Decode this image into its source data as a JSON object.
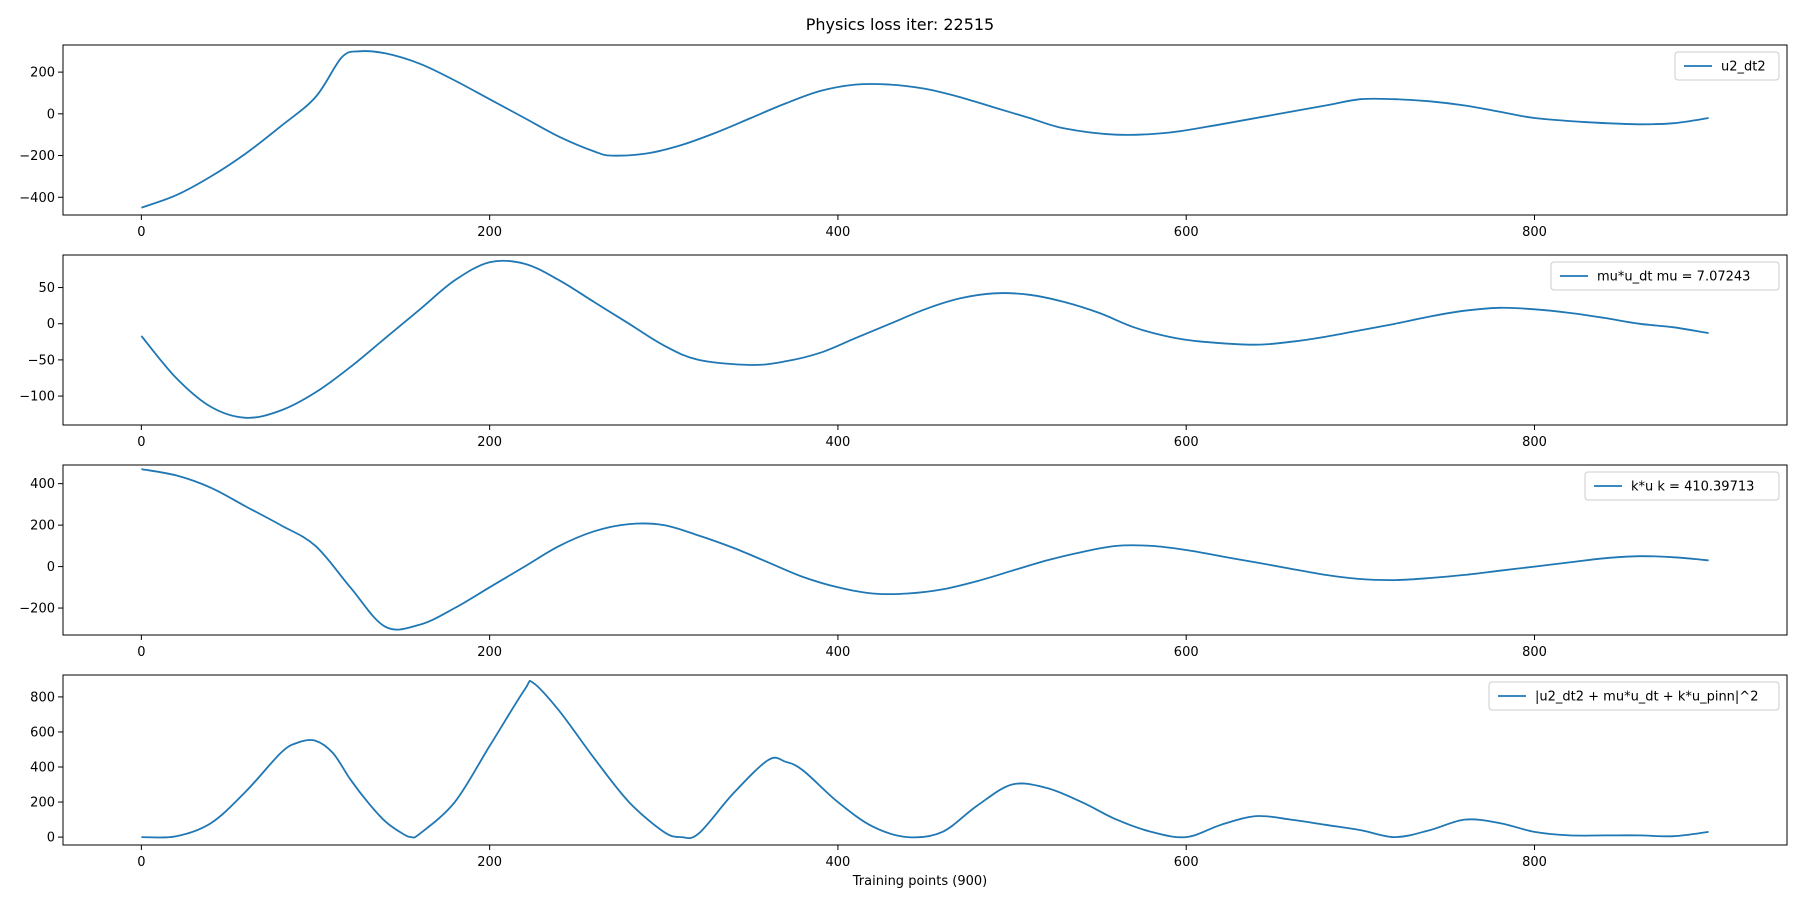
{
  "figure": {
    "title": "Physics loss iter: 22515",
    "xlabel": "Training points (900)"
  },
  "colors": {
    "line": "#1f77b4",
    "axis": "#000000",
    "legend_border": "#cccccc"
  },
  "chart_data": [
    {
      "type": "line",
      "legend_label": "u2_dt2",
      "xlim": [
        -45,
        945
      ],
      "ylim": [
        -485,
        330
      ],
      "xticks": [
        0,
        200,
        400,
        600,
        800
      ],
      "yticks": [
        -400,
        -200,
        0,
        200
      ],
      "legend": "top-right",
      "points": [
        [
          0,
          -450
        ],
        [
          20,
          -390
        ],
        [
          40,
          -300
        ],
        [
          60,
          -190
        ],
        [
          80,
          -60
        ],
        [
          100,
          80
        ],
        [
          115,
          270
        ],
        [
          125,
          300
        ],
        [
          140,
          290
        ],
        [
          160,
          240
        ],
        [
          180,
          160
        ],
        [
          200,
          70
        ],
        [
          220,
          -20
        ],
        [
          240,
          -110
        ],
        [
          260,
          -180
        ],
        [
          270,
          -200
        ],
        [
          290,
          -190
        ],
        [
          310,
          -150
        ],
        [
          330,
          -90
        ],
        [
          350,
          -20
        ],
        [
          370,
          50
        ],
        [
          390,
          110
        ],
        [
          410,
          140
        ],
        [
          430,
          140
        ],
        [
          450,
          120
        ],
        [
          470,
          80
        ],
        [
          490,
          30
        ],
        [
          510,
          -20
        ],
        [
          530,
          -70
        ],
        [
          560,
          -100
        ],
        [
          590,
          -90
        ],
        [
          620,
          -50
        ],
        [
          650,
          -5
        ],
        [
          680,
          40
        ],
        [
          700,
          70
        ],
        [
          720,
          70
        ],
        [
          740,
          60
        ],
        [
          760,
          40
        ],
        [
          780,
          10
        ],
        [
          800,
          -20
        ],
        [
          830,
          -40
        ],
        [
          860,
          -50
        ],
        [
          880,
          -45
        ],
        [
          900,
          -20
        ]
      ]
    },
    {
      "type": "line",
      "legend_label": "mu*u_dt  mu = 7.07243",
      "xlim": [
        -45,
        945
      ],
      "ylim": [
        -140,
        95
      ],
      "xticks": [
        0,
        200,
        400,
        600,
        800
      ],
      "yticks": [
        -100,
        -50,
        0,
        50
      ],
      "legend": "top-right",
      "points": [
        [
          0,
          -17
        ],
        [
          20,
          -75
        ],
        [
          40,
          -115
        ],
        [
          60,
          -130
        ],
        [
          80,
          -120
        ],
        [
          100,
          -95
        ],
        [
          120,
          -60
        ],
        [
          140,
          -20
        ],
        [
          160,
          20
        ],
        [
          180,
          60
        ],
        [
          200,
          85
        ],
        [
          220,
          83
        ],
        [
          240,
          60
        ],
        [
          260,
          30
        ],
        [
          280,
          0
        ],
        [
          300,
          -30
        ],
        [
          320,
          -50
        ],
        [
          350,
          -57
        ],
        [
          370,
          -52
        ],
        [
          390,
          -40
        ],
        [
          410,
          -20
        ],
        [
          430,
          0
        ],
        [
          450,
          20
        ],
        [
          470,
          35
        ],
        [
          490,
          42
        ],
        [
          510,
          40
        ],
        [
          530,
          30
        ],
        [
          550,
          15
        ],
        [
          570,
          -5
        ],
        [
          590,
          -18
        ],
        [
          610,
          -25
        ],
        [
          640,
          -29
        ],
        [
          660,
          -25
        ],
        [
          680,
          -18
        ],
        [
          700,
          -9
        ],
        [
          720,
          0
        ],
        [
          740,
          10
        ],
        [
          760,
          18
        ],
        [
          780,
          22
        ],
        [
          800,
          20
        ],
        [
          820,
          15
        ],
        [
          840,
          8
        ],
        [
          860,
          0
        ],
        [
          880,
          -5
        ],
        [
          900,
          -13
        ]
      ]
    },
    {
      "type": "line",
      "legend_label": "k*u  k = 410.39713",
      "xlim": [
        -45,
        945
      ],
      "ylim": [
        -330,
        490
      ],
      "xticks": [
        0,
        200,
        400,
        600,
        800
      ],
      "yticks": [
        -200,
        0,
        200,
        400
      ],
      "legend": "top-right",
      "points": [
        [
          0,
          470
        ],
        [
          20,
          440
        ],
        [
          40,
          380
        ],
        [
          60,
          290
        ],
        [
          80,
          200
        ],
        [
          100,
          100
        ],
        [
          120,
          -100
        ],
        [
          140,
          -290
        ],
        [
          160,
          -280
        ],
        [
          180,
          -200
        ],
        [
          200,
          -100
        ],
        [
          220,
          0
        ],
        [
          240,
          100
        ],
        [
          260,
          170
        ],
        [
          280,
          205
        ],
        [
          300,
          200
        ],
        [
          320,
          150
        ],
        [
          340,
          90
        ],
        [
          360,
          20
        ],
        [
          380,
          -50
        ],
        [
          400,
          -100
        ],
        [
          420,
          -130
        ],
        [
          440,
          -130
        ],
        [
          460,
          -110
        ],
        [
          480,
          -70
        ],
        [
          500,
          -20
        ],
        [
          520,
          30
        ],
        [
          540,
          70
        ],
        [
          560,
          100
        ],
        [
          580,
          100
        ],
        [
          600,
          80
        ],
        [
          620,
          50
        ],
        [
          640,
          20
        ],
        [
          660,
          -10
        ],
        [
          680,
          -40
        ],
        [
          700,
          -60
        ],
        [
          720,
          -65
        ],
        [
          740,
          -55
        ],
        [
          760,
          -40
        ],
        [
          780,
          -20
        ],
        [
          800,
          0
        ],
        [
          820,
          20
        ],
        [
          840,
          40
        ],
        [
          860,
          50
        ],
        [
          880,
          45
        ],
        [
          900,
          30
        ]
      ]
    },
    {
      "type": "line",
      "legend_label": "|u2_dt2 + mu*u_dt + k*u_pinn|^2",
      "xlim": [
        -45,
        945
      ],
      "ylim": [
        -45,
        925
      ],
      "xticks": [
        0,
        200,
        400,
        600,
        800
      ],
      "yticks": [
        0,
        200,
        400,
        600,
        800
      ],
      "legend": "top-right",
      "points": [
        [
          0,
          0
        ],
        [
          20,
          5
        ],
        [
          40,
          80
        ],
        [
          60,
          260
        ],
        [
          80,
          480
        ],
        [
          90,
          540
        ],
        [
          100,
          550
        ],
        [
          110,
          480
        ],
        [
          120,
          330
        ],
        [
          130,
          200
        ],
        [
          140,
          90
        ],
        [
          150,
          20
        ],
        [
          155,
          0
        ],
        [
          160,
          20
        ],
        [
          180,
          200
        ],
        [
          200,
          520
        ],
        [
          220,
          840
        ],
        [
          225,
          880
        ],
        [
          240,
          720
        ],
        [
          260,
          450
        ],
        [
          280,
          200
        ],
        [
          300,
          30
        ],
        [
          310,
          0
        ],
        [
          320,
          20
        ],
        [
          340,
          250
        ],
        [
          360,
          440
        ],
        [
          370,
          430
        ],
        [
          380,
          380
        ],
        [
          400,
          200
        ],
        [
          420,
          60
        ],
        [
          440,
          0
        ],
        [
          460,
          30
        ],
        [
          480,
          180
        ],
        [
          500,
          300
        ],
        [
          520,
          280
        ],
        [
          540,
          200
        ],
        [
          560,
          100
        ],
        [
          580,
          30
        ],
        [
          600,
          0
        ],
        [
          620,
          70
        ],
        [
          640,
          120
        ],
        [
          660,
          100
        ],
        [
          680,
          70
        ],
        [
          700,
          40
        ],
        [
          720,
          0
        ],
        [
          740,
          40
        ],
        [
          760,
          100
        ],
        [
          780,
          80
        ],
        [
          800,
          30
        ],
        [
          820,
          10
        ],
        [
          840,
          10
        ],
        [
          860,
          10
        ],
        [
          880,
          5
        ],
        [
          900,
          30
        ]
      ]
    }
  ]
}
